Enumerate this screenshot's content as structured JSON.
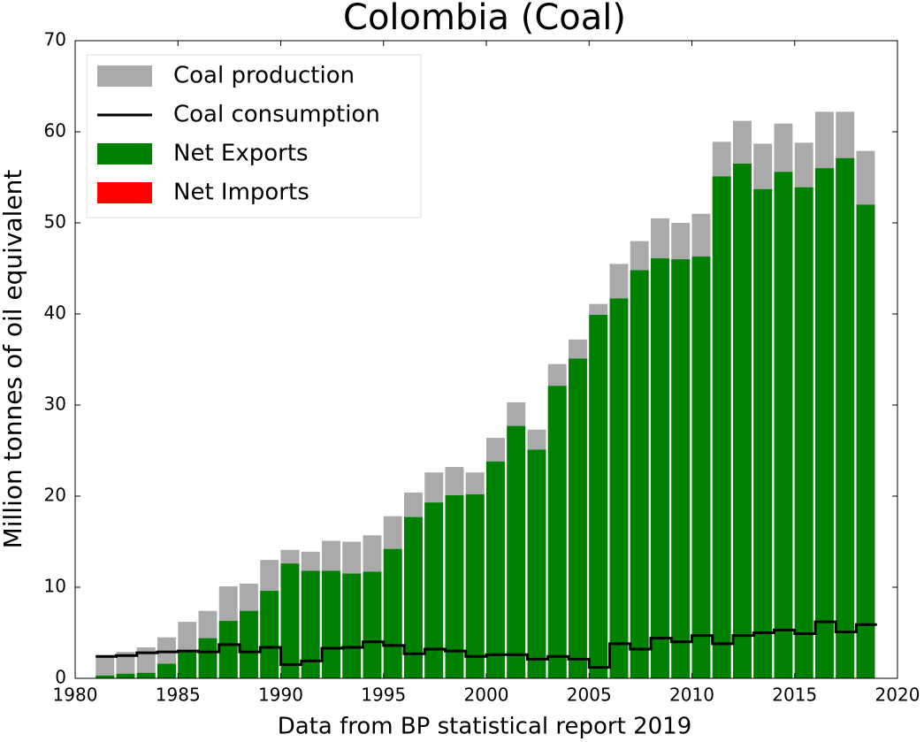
{
  "chart_data": {
    "type": "bar",
    "title": "Colombia (Coal)",
    "xlabel": "Data from BP statistical report 2019",
    "ylabel": "Million tonnes of oil equivalent",
    "x": [
      1981,
      1982,
      1983,
      1984,
      1985,
      1986,
      1987,
      1988,
      1989,
      1990,
      1991,
      1992,
      1993,
      1994,
      1995,
      1996,
      1997,
      1998,
      1999,
      2000,
      2001,
      2002,
      2003,
      2004,
      2005,
      2006,
      2007,
      2008,
      2009,
      2010,
      2011,
      2012,
      2013,
      2014,
      2015,
      2016,
      2017,
      2018
    ],
    "series": [
      {
        "name": "Coal production",
        "color": "#aaaaaa",
        "values": [
          2.3,
          2.9,
          3.4,
          4.5,
          6.2,
          7.4,
          10.1,
          10.4,
          13.0,
          14.1,
          13.9,
          15.1,
          15.0,
          15.7,
          17.8,
          20.4,
          22.6,
          23.2,
          22.6,
          26.4,
          30.3,
          27.3,
          34.5,
          37.2,
          41.1,
          45.5,
          48.0,
          50.5,
          50.0,
          51.0,
          58.9,
          61.2,
          58.7,
          60.9,
          58.8,
          62.2,
          62.2,
          57.9
        ]
      },
      {
        "name": "Coal consumption",
        "color": "#000000",
        "values": [
          2.4,
          2.5,
          2.8,
          2.9,
          3.0,
          2.9,
          3.7,
          2.9,
          3.4,
          1.5,
          1.9,
          3.3,
          3.4,
          4.0,
          3.6,
          2.7,
          3.2,
          3.0,
          2.4,
          2.6,
          2.6,
          2.1,
          2.4,
          2.1,
          1.2,
          3.8,
          3.2,
          4.4,
          4.0,
          4.7,
          3.8,
          4.7,
          5.0,
          5.3,
          4.9,
          6.2,
          5.1,
          5.9
        ]
      },
      {
        "name": "Net Exports",
        "color": "#008000",
        "values": [
          0.3,
          0.5,
          0.6,
          1.6,
          3.0,
          4.4,
          6.3,
          7.4,
          9.6,
          12.6,
          11.8,
          11.8,
          11.5,
          11.7,
          14.2,
          17.7,
          19.3,
          20.1,
          20.2,
          23.8,
          27.7,
          25.1,
          32.1,
          35.1,
          39.9,
          41.7,
          44.8,
          46.1,
          46.0,
          46.3,
          55.1,
          56.5,
          53.7,
          55.6,
          53.9,
          56.0,
          57.1,
          52.0
        ]
      },
      {
        "name": "Net Imports",
        "color": "#ff0000",
        "values": [
          0,
          0,
          0,
          0,
          0,
          0,
          0,
          0,
          0,
          0,
          0,
          0,
          0,
          0,
          0,
          0,
          0,
          0,
          0,
          0,
          0,
          0,
          0,
          0,
          0,
          0,
          0,
          0,
          0,
          0,
          0,
          0,
          0,
          0,
          0,
          0,
          0,
          0
        ]
      }
    ],
    "xlim": [
      1980,
      2020
    ],
    "xticks": [
      1980,
      1985,
      1990,
      1995,
      2000,
      2005,
      2010,
      2015,
      2020
    ],
    "ylim": [
      0,
      70
    ],
    "yticks": [
      0,
      10,
      20,
      30,
      40,
      50,
      60,
      70
    ],
    "legend": "upper left",
    "grid": false
  }
}
